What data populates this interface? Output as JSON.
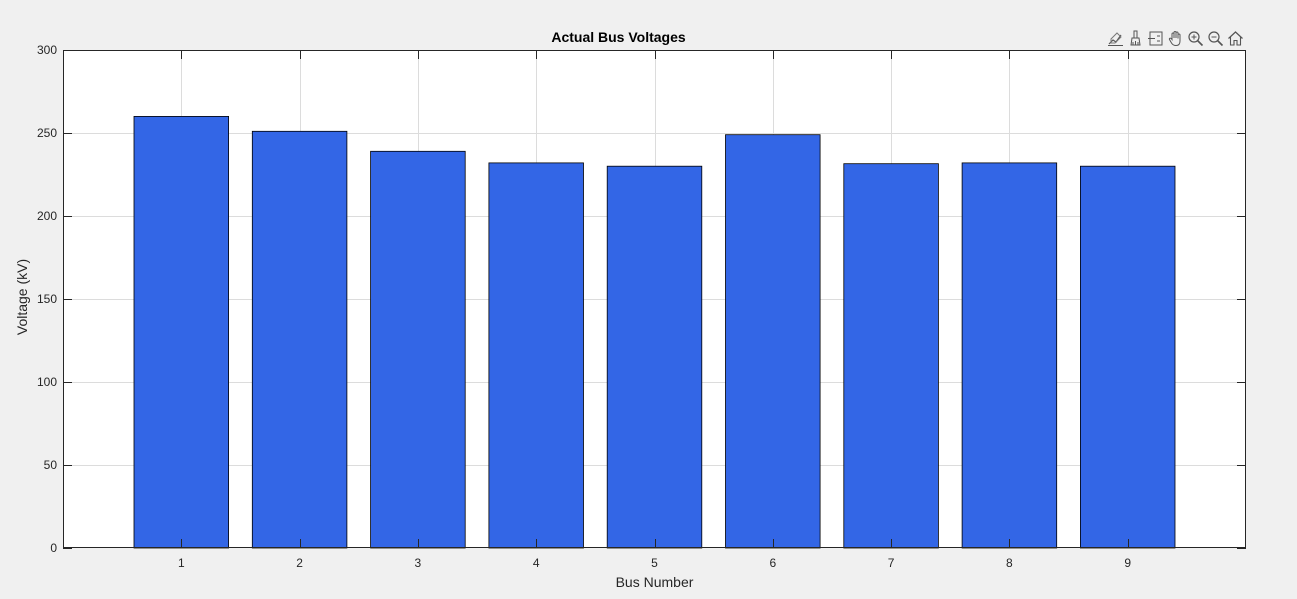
{
  "chart_data": {
    "type": "bar",
    "title": "Actual Bus Voltages",
    "xlabel": "Bus Number",
    "ylabel": "Voltage (kV)",
    "categories": [
      "1",
      "2",
      "3",
      "4",
      "5",
      "6",
      "7",
      "8",
      "9"
    ],
    "values": [
      260,
      251,
      239,
      232,
      230,
      249,
      231.5,
      232,
      230
    ],
    "ylim": [
      0,
      300
    ],
    "yticks": [
      0,
      50,
      100,
      150,
      200,
      250,
      300
    ],
    "xlim": [
      0,
      10
    ],
    "grid": true,
    "bar_color": "#3366e6",
    "bar_edge_color": "#000000"
  },
  "toolbar": {
    "buttons": [
      {
        "name": "edit-plot-icon"
      },
      {
        "name": "brush-icon"
      },
      {
        "name": "data-tips-icon"
      },
      {
        "name": "pan-icon"
      },
      {
        "name": "zoom-in-icon"
      },
      {
        "name": "zoom-out-icon"
      },
      {
        "name": "home-icon"
      }
    ]
  }
}
